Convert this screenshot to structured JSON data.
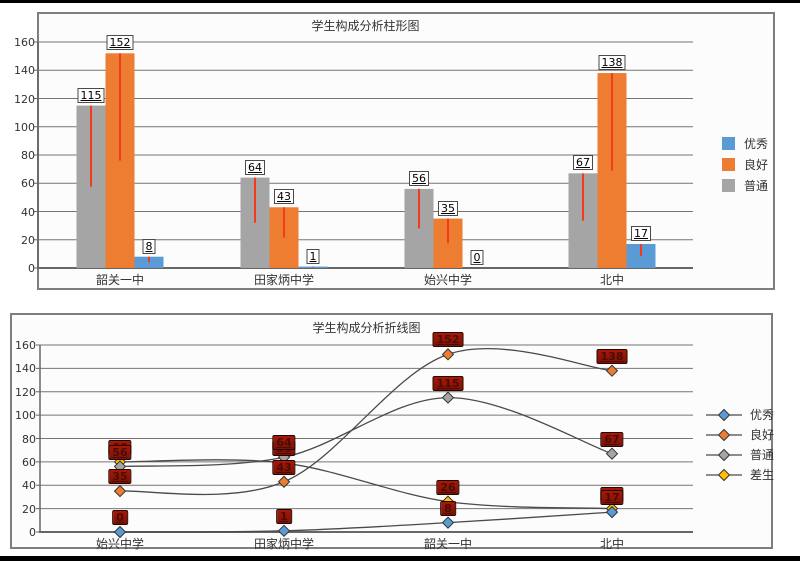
{
  "window": {
    "background": "#ffffff",
    "top_border_color": "#000000",
    "bottom_border_color": "#000000"
  },
  "chart_data": [
    {
      "type": "bar",
      "title": "学生构成分析柱形图",
      "categories": [
        "韶关一中",
        "田家炳中学",
        "始兴中学",
        "北中"
      ],
      "series": [
        {
          "name": "优秀",
          "key": "excellent",
          "color": "#5B9BD5",
          "values": [
            8,
            1,
            0,
            17
          ]
        },
        {
          "name": "良好",
          "key": "good",
          "color": "#ED7D31",
          "values": [
            152,
            43,
            35,
            138
          ]
        },
        {
          "name": "普通",
          "key": "ordinary",
          "color": "#A5A5A5",
          "values": [
            115,
            64,
            56,
            67
          ]
        }
      ],
      "bar_visual_order": [
        "普通",
        "良好",
        "优秀"
      ],
      "ylim": [
        0,
        160
      ],
      "ytick_step": 20,
      "yticks": [
        0,
        20,
        40,
        60,
        80,
        100,
        120,
        140,
        160
      ],
      "legend_position": "right",
      "grid": true,
      "grid_color": "#757575",
      "axis_color": "#666666",
      "error_bar_color": "#F43A1E",
      "error_bar_rule": "red line from bar top down to half of value",
      "label_box": {
        "bg": "#FFFFFF",
        "border": "#4A4A4A",
        "text": "#000000"
      }
    },
    {
      "type": "line",
      "title": "学生构成分析折线图",
      "categories": [
        "始兴中学",
        "田家炳中学",
        "韶关一中",
        "北中"
      ],
      "series": [
        {
          "name": "优秀",
          "key": "excellent",
          "color": "#5B9BD5",
          "values": [
            0,
            1,
            8,
            17
          ]
        },
        {
          "name": "良好",
          "key": "good",
          "color": "#ED7D31",
          "values": [
            35,
            43,
            152,
            138
          ]
        },
        {
          "name": "普通",
          "key": "ordinary",
          "color": "#A5A5A5",
          "values": [
            56,
            64,
            115,
            67
          ]
        },
        {
          "name": "差生",
          "key": "poor",
          "color": "#FFC000",
          "values": [
            60,
            59,
            26,
            20
          ]
        }
      ],
      "ylim": [
        0,
        160
      ],
      "ytick_step": 20,
      "yticks": [
        0,
        20,
        40,
        60,
        80,
        100,
        120,
        140,
        160
      ],
      "legend_position": "right",
      "grid": true,
      "grid_color": "#757575",
      "axis_color": "#666666",
      "smooth": true,
      "marker": "diamond",
      "line_color": "#4A4A4A",
      "label_box": {
        "bg": "#A81807",
        "border": "#240502",
        "text": "#4A0D05"
      }
    }
  ]
}
